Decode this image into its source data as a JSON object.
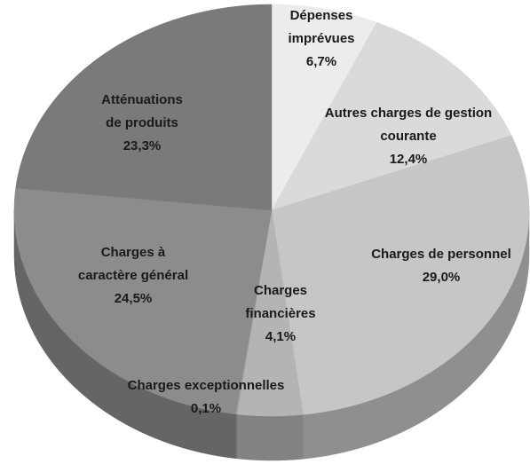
{
  "chart_data": {
    "type": "pie",
    "categories": [
      [
        "Dépenses",
        "imprévues"
      ],
      [
        "Autres charges de gestion",
        "courante"
      ],
      [
        "Charges de personnel"
      ],
      [
        "Charges",
        "financières"
      ],
      [
        "Charges exceptionnelles"
      ],
      [
        "Charges à",
        "caractère général"
      ],
      [
        "Atténuations",
        "de produits"
      ]
    ],
    "values": [
      6.7,
      12.4,
      29.0,
      4.1,
      0.1,
      24.5,
      23.3
    ],
    "value_labels": [
      "6,7%",
      "12,4%",
      "29,0%",
      "4,1%",
      "0,1%",
      "24,5%",
      "23,3%"
    ],
    "colors": [
      "#ececec",
      "#dadada",
      "#c6c6c6",
      "#b4b4b4",
      "#a0a0a0",
      "#8c8c8c",
      "#7a7a7a"
    ]
  }
}
